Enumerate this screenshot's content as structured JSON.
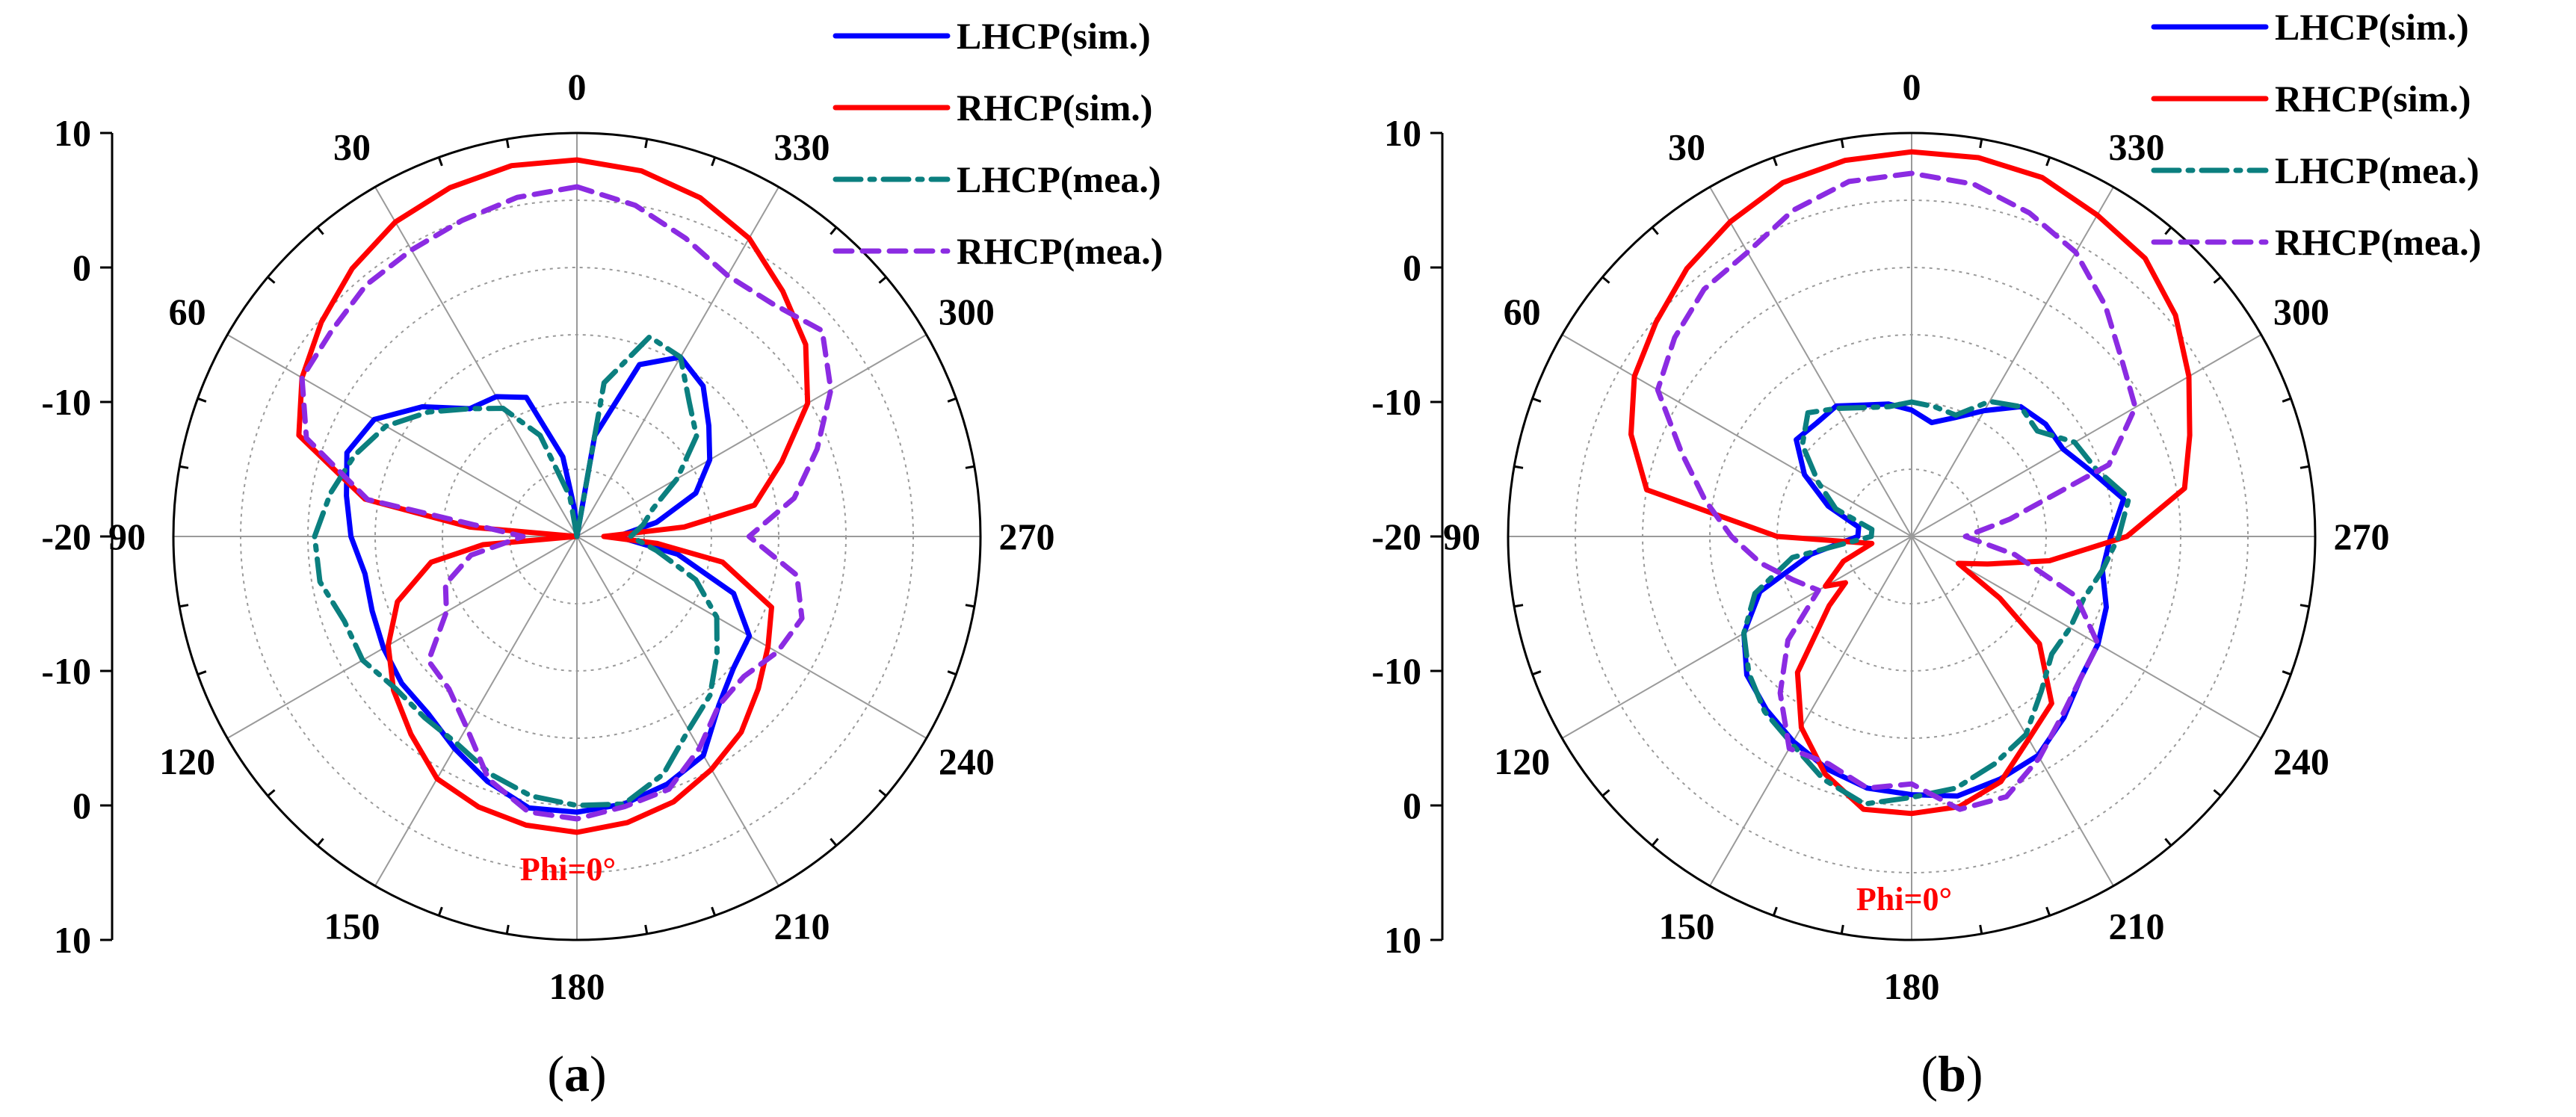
{
  "chart_data": [
    {
      "type": "polar-line",
      "panel_label": "a",
      "annotation": "Phi=0°",
      "angle_labels": [
        "0",
        "30",
        "60",
        "90",
        "120",
        "150",
        "180",
        "210",
        "240",
        "270",
        "300",
        "330"
      ],
      "radial_ticks": [
        "10",
        "0",
        "-10",
        "-20",
        "-10",
        "0",
        "10"
      ],
      "radial_range_db": [
        -20,
        10
      ],
      "legend": [
        "LHCP(sim.)",
        "RHCP(sim.)",
        "LHCP(mea.)",
        "RHCP(mea.)"
      ],
      "series": [
        {
          "name": "LHCP(sim.)",
          "color": "#0000ff",
          "style": "solid",
          "theta": [
            0,
            5,
            10,
            20,
            30,
            40,
            50,
            60,
            70,
            80,
            90,
            100,
            110,
            120,
            130,
            140,
            150,
            160,
            170,
            180,
            190,
            200,
            210,
            220,
            230,
            240,
            250,
            260,
            270,
            280,
            290,
            300,
            310,
            320,
            330,
            340,
            350,
            360
          ],
          "r_db": [
            -20,
            -18,
            -14,
            -9,
            -8,
            -7.6,
            -5,
            -2.6,
            -1.8,
            -2.6,
            -3.2,
            -4,
            -3.8,
            -3.4,
            -3,
            -2.8,
            -1.8,
            -0.6,
            0.5,
            0.5,
            0.2,
            -0.4,
            -1.2,
            -3.6,
            -4.8,
            -5.2,
            -7.6,
            -12.4,
            -17,
            -14,
            -10.6,
            -8.6,
            -7.2,
            -5.4,
            -4.6,
            -6.4,
            -12.4,
            -20
          ]
        },
        {
          "name": "RHCP(sim.)",
          "color": "#ff0000",
          "style": "solid",
          "theta": [
            0,
            10,
            20,
            30,
            40,
            50,
            60,
            70,
            80,
            85,
            90,
            95,
            100,
            110,
            120,
            130,
            140,
            150,
            160,
            170,
            180,
            190,
            200,
            210,
            220,
            230,
            240,
            250,
            260,
            265,
            270,
            275,
            280,
            290,
            300,
            310,
            320,
            330,
            340,
            350,
            360
          ],
          "r_db": [
            8,
            8,
            7.6,
            7,
            6,
            4.8,
            3.6,
            2,
            -4,
            -12,
            -20,
            -13,
            -9,
            -5.8,
            -3.8,
            -2.2,
            -0.8,
            0.8,
            1.4,
            1.8,
            2,
            1.6,
            1,
            0,
            -1,
            -2.4,
            -3.6,
            -4.6,
            -9,
            -14,
            -18,
            -12,
            -6.6,
            -3.8,
            -0.2,
            2.2,
            3.8,
            5.6,
            6.8,
            7.6,
            8
          ]
        },
        {
          "name": "LHCP(mea.)",
          "color": "#0b7f7f",
          "style": "dashdot",
          "theta": [
            0,
            10,
            20,
            30,
            40,
            50,
            60,
            70,
            80,
            90,
            100,
            110,
            120,
            130,
            140,
            150,
            160,
            170,
            180,
            190,
            200,
            210,
            220,
            230,
            240,
            250,
            260,
            270,
            280,
            290,
            300,
            310,
            320,
            330,
            340,
            350,
            360
          ],
          "r_db": [
            -20,
            -17,
            -12,
            -9,
            -7.6,
            -5.6,
            -3.6,
            -2.4,
            -1.4,
            -0.5,
            -0.6,
            -1.6,
            -1.6,
            -2.4,
            -2.4,
            -2.2,
            -1.2,
            -0.4,
            0,
            0.2,
            -1.2,
            -3.4,
            -4.6,
            -6.4,
            -8,
            -10.6,
            -14,
            -16,
            -15,
            -14,
            -11.4,
            -8.4,
            -7,
            -4.6,
            -4.2,
            -8.4,
            -20
          ]
        },
        {
          "name": "RHCP(mea.)",
          "color": "#8b2be2",
          "style": "dashed",
          "theta": [
            0,
            10,
            20,
            30,
            40,
            50,
            60,
            70,
            80,
            90,
            100,
            110,
            120,
            130,
            140,
            150,
            160,
            170,
            180,
            190,
            200,
            210,
            220,
            230,
            240,
            250,
            260,
            270,
            280,
            290,
            300,
            310,
            320,
            330,
            340,
            350,
            360
          ],
          "r_db": [
            6,
            5.6,
            5,
            4.6,
            4.4,
            3.8,
            3.6,
            1.4,
            -4.2,
            -16,
            -12,
            -9.6,
            -8.8,
            -5.6,
            -5.2,
            -3.6,
            -0.8,
            0.8,
            1,
            0.4,
            0,
            -1.8,
            -3.6,
            -3.8,
            -2.8,
            -2.2,
            -3.4,
            -7.2,
            -3.6,
            -1,
            1.8,
            3.8,
            2.6,
            2.4,
            3.6,
            5,
            6
          ]
        }
      ]
    },
    {
      "type": "polar-line",
      "panel_label": "b",
      "annotation": "Phi=0°",
      "angle_labels": [
        "0",
        "30",
        "60",
        "90",
        "120",
        "150",
        "180",
        "210",
        "240",
        "270",
        "300",
        "330"
      ],
      "radial_ticks": [
        "10",
        "0",
        "-10",
        "-20",
        "-10",
        "0",
        "10"
      ],
      "radial_range_db": [
        -20,
        10
      ],
      "legend": [
        "LHCP(sim.)",
        "RHCP(sim.)",
        "LHCP(mea.)",
        "RHCP(mea.)"
      ],
      "series": [
        {
          "name": "LHCP(sim.)",
          "color": "#0000ff",
          "style": "solid",
          "theta": [
            0,
            10,
            20,
            30,
            40,
            50,
            60,
            70,
            80,
            90,
            100,
            110,
            120,
            130,
            140,
            150,
            160,
            170,
            180,
            190,
            200,
            210,
            220,
            230,
            240,
            250,
            260,
            270,
            280,
            290,
            300,
            310,
            320,
            330,
            340,
            350,
            360
          ],
          "r_db": [
            -10.6,
            -10,
            -9.6,
            -8.8,
            -9,
            -8.8,
            -10.8,
            -13.4,
            -16,
            -16,
            -12.4,
            -8,
            -5.6,
            -4,
            -3.2,
            -2.4,
            -1.6,
            -1,
            -0.8,
            -0.4,
            -0.8,
            -1.2,
            -2.4,
            -3.6,
            -4,
            -4.6,
            -5.6,
            -5.2,
            -4,
            -5.8,
            -7,
            -7,
            -7.4,
            -9.2,
            -10.6,
            -11.4,
            -10.6
          ]
        },
        {
          "name": "RHCP(sim.)",
          "color": "#ff0000",
          "style": "solid",
          "theta": [
            0,
            10,
            20,
            30,
            40,
            50,
            60,
            70,
            80,
            90,
            100,
            110,
            120,
            125,
            130,
            140,
            150,
            160,
            170,
            180,
            190,
            200,
            210,
            220,
            230,
            235,
            240,
            250,
            260,
            270,
            280,
            290,
            300,
            310,
            320,
            330,
            340,
            350,
            360
          ],
          "r_db": [
            8.6,
            8.4,
            8,
            7,
            6,
            4.8,
            3.8,
            2.2,
            0,
            -10,
            -17,
            -14.6,
            -12.6,
            -14,
            -12,
            -6.8,
            -3.6,
            -1.2,
            0.6,
            0.6,
            0.4,
            -0.6,
            -2.6,
            -3.8,
            -7.6,
            -12,
            -16,
            -14,
            -9.6,
            -4,
            0.6,
            2,
            3.8,
            5.6,
            7,
            7.6,
            8.4,
            8.6,
            8.6
          ]
        },
        {
          "name": "LHCP(mea.)",
          "color": "#0b7f7f",
          "style": "dashdot",
          "theta": [
            0,
            10,
            20,
            30,
            40,
            50,
            60,
            70,
            80,
            90,
            100,
            110,
            120,
            130,
            140,
            150,
            160,
            170,
            180,
            190,
            200,
            210,
            220,
            230,
            240,
            250,
            260,
            270,
            280,
            290,
            300,
            310,
            320,
            330,
            340,
            350,
            360
          ],
          "r_db": [
            -10,
            -10.2,
            -9.8,
            -9,
            -8,
            -9.4,
            -12,
            -14,
            -17,
            -17,
            -11,
            -7.6,
            -5.6,
            -4.2,
            -3,
            -2.2,
            -0.8,
            0.2,
            -0.6,
            -1,
            -2,
            -3,
            -5,
            -6.4,
            -6.4,
            -6.4,
            -5.6,
            -4.6,
            -3.6,
            -5.4,
            -6,
            -7.8,
            -7.4,
            -8.4,
            -10.4,
            -10.2,
            -10
          ]
        },
        {
          "name": "RHCP(mea.)",
          "color": "#8b2be2",
          "style": "dashed",
          "theta": [
            0,
            10,
            20,
            30,
            40,
            50,
            60,
            70,
            80,
            90,
            100,
            110,
            120,
            130,
            140,
            150,
            160,
            170,
            180,
            190,
            200,
            210,
            220,
            230,
            240,
            250,
            260,
            270,
            280,
            290,
            300,
            310,
            320,
            330,
            340,
            350,
            360
          ],
          "r_db": [
            7,
            6.8,
            5.8,
            4.4,
            4,
            3,
            1.8,
            -1.8,
            -4.4,
            -6.6,
            -8.6,
            -10.6,
            -12,
            -8,
            -4.8,
            -1.8,
            -2,
            -1,
            -1.6,
            0.6,
            0.6,
            -1,
            -2.6,
            -3.6,
            -4,
            -7,
            -12.2,
            -16,
            -12.6,
            -4.4,
            -0.8,
            0.4,
            2.4,
            4.4,
            5.6,
            6.6,
            7
          ]
        }
      ]
    }
  ]
}
